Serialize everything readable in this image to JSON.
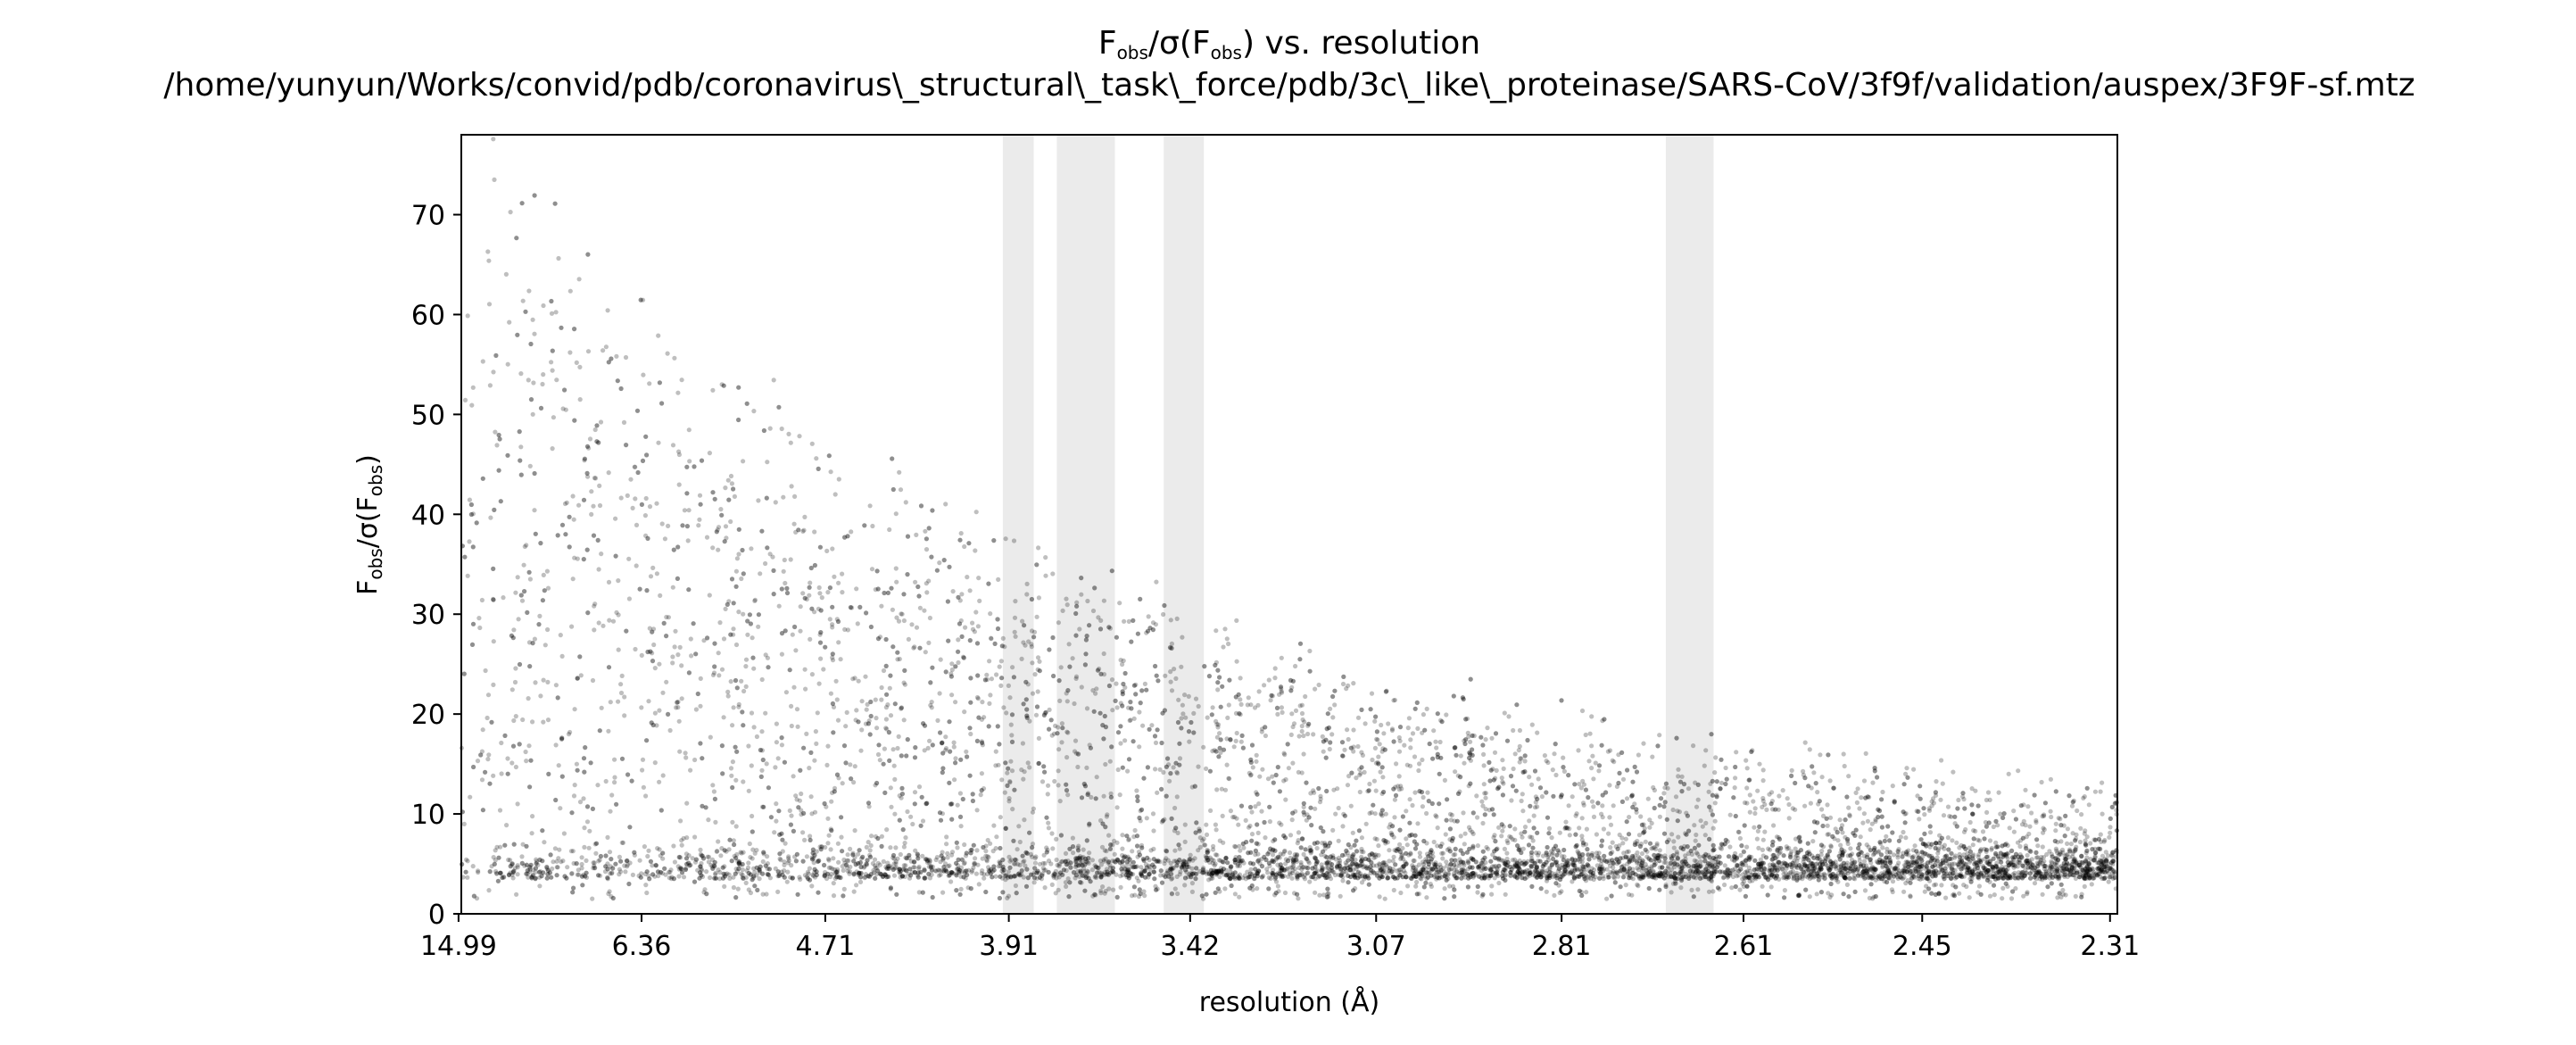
{
  "chart_data": {
    "type": "scatter",
    "title_main": "F",
    "title_sub": "obs",
    "title_mid": "/σ(F",
    "title_sub2": "obs",
    "title_end": ") vs. resolution",
    "subtitle": "/home/yunyun/Works/convid/pdb/coronavirus\\_structural\\_task\\_force/pdb/3c\\_like\\_proteinase/SARS-CoV/3f9f/validation/auspex/3F9F-sf.mtz",
    "xlabel": "resolution (Å)",
    "ylabel_main": "F",
    "ylabel_sub": "obs",
    "ylabel_mid": "/σ(F",
    "ylabel_sub2": "obs",
    "ylabel_end": ")",
    "x_scale": "1/d^2",
    "xlim": [
      14.5,
      2.305
    ],
    "ylim": [
      0,
      78
    ],
    "x_ticks": [
      "14.99",
      "6.36",
      "4.71",
      "3.91",
      "3.42",
      "3.07",
      "2.81",
      "2.61",
      "2.45",
      "2.31"
    ],
    "y_ticks": [
      "0",
      "10",
      "20",
      "30",
      "40",
      "50",
      "60",
      "70"
    ],
    "ice_ring_bands_resolution": [
      [
        3.93,
        3.83
      ],
      [
        3.76,
        3.6
      ],
      [
        3.48,
        3.39
      ],
      [
        2.69,
        2.64
      ]
    ],
    "grid": false,
    "point_color": "#000000",
    "band_color": "#ebebeb"
  }
}
